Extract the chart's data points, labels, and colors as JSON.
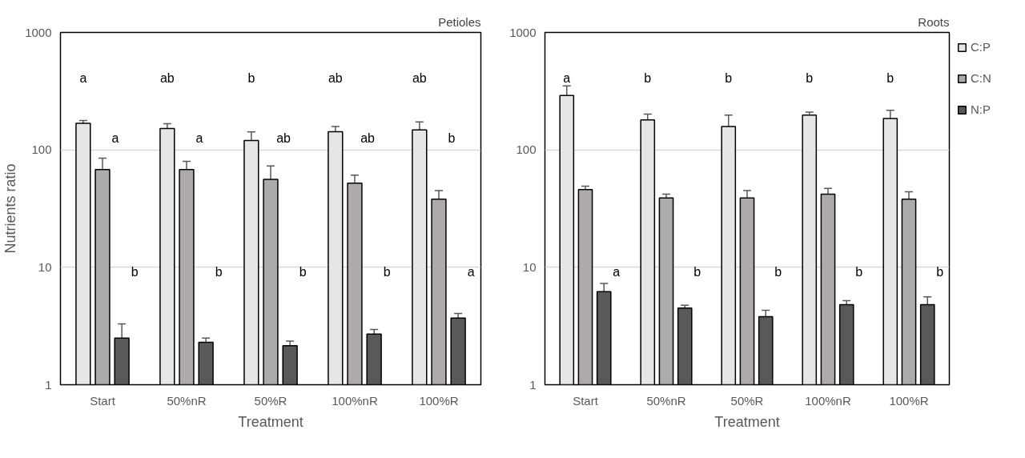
{
  "chart_data": [
    {
      "type": "bar",
      "title": "Petioles",
      "xlabel": "Treatment",
      "ylabel": "Nutrients ratio",
      "categories": [
        "Start",
        "50%nR",
        "50%R",
        "100%nR",
        "100%R"
      ],
      "log": true,
      "ylim": [
        1,
        1000
      ],
      "yticks": [
        1,
        10,
        100,
        1000
      ],
      "grid": "y",
      "legend": false,
      "series": [
        {
          "color": "#e6e6e6",
          "values": [
            168,
            152,
            120,
            143,
            148
          ],
          "errors": [
            10,
            15,
            22,
            15,
            25
          ]
        },
        {
          "color": "#aeaaaa",
          "values": [
            68,
            68,
            56,
            52,
            38
          ],
          "errors": [
            17,
            12,
            17,
            9,
            7
          ]
        },
        {
          "color": "#595959",
          "values": [
            2.5,
            2.3,
            2.15,
            2.7,
            3.7
          ],
          "errors": [
            0.8,
            0.2,
            0.2,
            0.25,
            0.35
          ]
        }
      ],
      "annotations": [
        "a",
        "ab",
        "b",
        "ab",
        "ab",
        "a",
        "a",
        "ab",
        "ab",
        "b",
        "b",
        "b",
        "b",
        "b",
        "a"
      ]
    },
    {
      "type": "bar",
      "title": "Roots",
      "xlabel": "Treatment",
      "categories": [
        "Start",
        "50%nR",
        "50%R",
        "100%nR",
        "100%R"
      ],
      "log": true,
      "ylim": [
        1,
        1000
      ],
      "yticks": [
        1,
        10,
        100,
        1000
      ],
      "grid": "y",
      "legend": "top right",
      "series": [
        {
          "name": "C:P",
          "color": "#e6e6e6",
          "values": [
            290,
            180,
            158,
            198,
            185
          ],
          "errors": [
            60,
            22,
            40,
            12,
            32
          ]
        },
        {
          "name": "C:N",
          "color": "#aeaaaa",
          "values": [
            46,
            39,
            39,
            42,
            38
          ],
          "errors": [
            3,
            3,
            6,
            5,
            6
          ]
        },
        {
          "name": "N:P",
          "color": "#595959",
          "values": [
            6.2,
            4.5,
            3.8,
            4.8,
            4.8
          ],
          "errors": [
            1.1,
            0.25,
            0.5,
            0.4,
            0.8
          ]
        }
      ],
      "annotations": [
        "a",
        "b",
        "b",
        "b",
        "b",
        "a",
        "b",
        "b",
        "b",
        "b"
      ]
    }
  ]
}
